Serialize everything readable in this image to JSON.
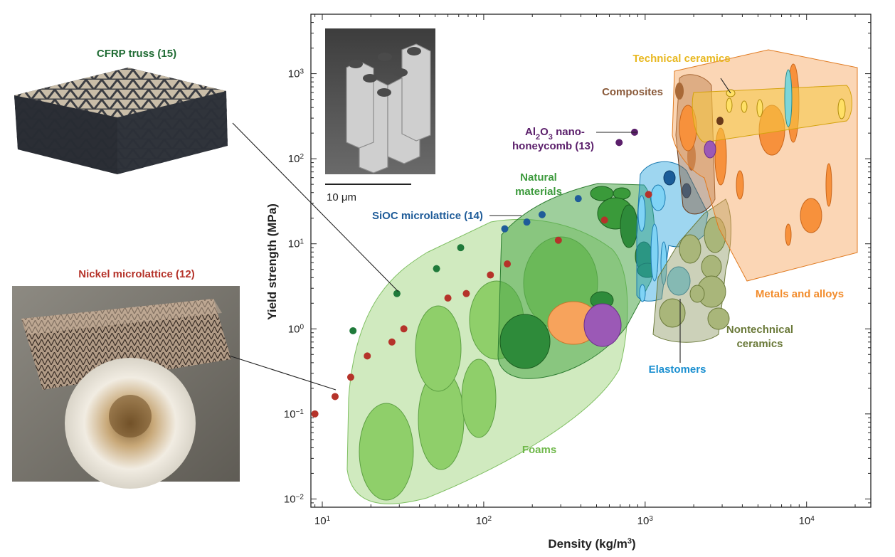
{
  "chart_data": {
    "type": "scatter",
    "xlabel": "Density (kg/m",
    "xlabel_sup": "3",
    "xlabel_end": ")",
    "ylabel": "Yield strength (MPa)",
    "x_scale": "log",
    "y_scale": "log",
    "xlim": [
      8.5,
      25000
    ],
    "ylim": [
      0.008,
      5000
    ],
    "grid": false,
    "x_ticks": [
      {
        "value": 10,
        "base": "10",
        "exp": "1"
      },
      {
        "value": 100,
        "base": "10",
        "exp": "2"
      },
      {
        "value": 1000,
        "base": "10",
        "exp": "3"
      },
      {
        "value": 10000,
        "base": "10",
        "exp": "4"
      }
    ],
    "y_ticks": [
      {
        "value": 0.01,
        "base": "10",
        "exp": "−2"
      },
      {
        "value": 0.1,
        "base": "10",
        "exp": "−1"
      },
      {
        "value": 1,
        "base": "10",
        "exp": "0"
      },
      {
        "value": 10,
        "base": "10",
        "exp": "1"
      },
      {
        "value": 100,
        "base": "10",
        "exp": "2"
      },
      {
        "value": 1000,
        "base": "10",
        "exp": "3"
      }
    ],
    "regions": [
      {
        "name": "Foams",
        "color": "#a9d98a"
      },
      {
        "name": "Natural materials",
        "color": "#4fa84a"
      },
      {
        "name": "Elastomers",
        "color": "#29a3dd"
      },
      {
        "name": "Nontechnical ceramics",
        "color": "#8e9a63"
      },
      {
        "name": "Composites",
        "color": "#8a5a3a"
      },
      {
        "name": "Technical ceramics",
        "color": "#f5c842"
      },
      {
        "name": "Metals and alloys",
        "color": "#f7a35c"
      }
    ],
    "series": [
      {
        "name": "Nickel microlattice (12)",
        "color": "#b5332a",
        "points": [
          {
            "x": 9,
            "y": 0.1
          },
          {
            "x": 12,
            "y": 0.16
          },
          {
            "x": 15,
            "y": 0.27
          },
          {
            "x": 19,
            "y": 0.48
          },
          {
            "x": 27,
            "y": 0.7
          },
          {
            "x": 32,
            "y": 1.0
          },
          {
            "x": 60,
            "y": 2.3
          },
          {
            "x": 78,
            "y": 2.6
          },
          {
            "x": 110,
            "y": 4.3
          },
          {
            "x": 140,
            "y": 5.8
          },
          {
            "x": 290,
            "y": 11
          },
          {
            "x": 560,
            "y": 19
          },
          {
            "x": 1050,
            "y": 38
          }
        ]
      },
      {
        "name": "CFRP truss (15)",
        "color": "#1f7a3a",
        "points": [
          {
            "x": 15.5,
            "y": 0.95
          },
          {
            "x": 29,
            "y": 2.6
          },
          {
            "x": 51,
            "y": 5.1
          },
          {
            "x": 72,
            "y": 9
          }
        ]
      },
      {
        "name": "SiOC microlattice (14)",
        "color": "#1f5c99",
        "points": [
          {
            "x": 135,
            "y": 15
          },
          {
            "x": 185,
            "y": 18
          },
          {
            "x": 230,
            "y": 22
          },
          {
            "x": 385,
            "y": 34
          }
        ]
      },
      {
        "name": "Al2O3 nanohoneycomb (13)",
        "color": "#5b1f6b",
        "points": [
          {
            "x": 690,
            "y": 155
          },
          {
            "x": 860,
            "y": 205
          }
        ]
      }
    ]
  },
  "labels": {
    "cfrp": "CFRP truss (15)",
    "nickel": "Nickel microlattice (12)",
    "sioc": "SiOC microlattice (14)",
    "al2o3_pre": "Al",
    "al2o3_sub1": "2",
    "al2o3_mid": "O",
    "al2o3_sub2": "3",
    "al2o3_post": " nano-",
    "al2o3_line2": "honeycomb (13)",
    "natural_1": "Natural",
    "natural_2": "materials",
    "foams": "Foams",
    "elastomers": "Elastomers",
    "nontech_1": "Nontechnical",
    "nontech_2": "ceramics",
    "composites": "Composites",
    "techceramics": "Technical ceramics",
    "metals": "Metals and alloys",
    "scalebar": "10 μm"
  },
  "colors": {
    "nickel_label": "#b5332a",
    "cfrp_label": "#1f6b33",
    "sioc_label": "#1f5c99",
    "al2o3_label": "#5b1f6b",
    "natural_label": "#3c9a3c",
    "foams_label": "#6fb84a",
    "elastomers_label": "#1a8fd0",
    "nontech_label": "#6b7a3a",
    "composites_label": "#8a5a3a",
    "techceramics_label": "#e8b820",
    "metals_label": "#f28c2c"
  }
}
